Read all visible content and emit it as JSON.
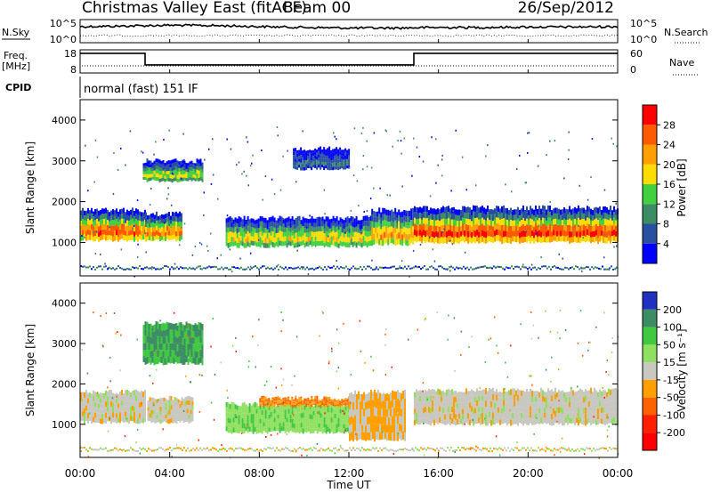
{
  "header": {
    "title": "Christmas Valley East (fitACF)",
    "beam": "Beam 00",
    "date": "26/Sep/2012"
  },
  "panels": {
    "nsky": {
      "label": "N.Sky",
      "ytick_top": "10^5",
      "ytick_bottom": "10^0",
      "right_tick_top": "10^5",
      "right_tick_bottom": "10^0",
      "right_label": "N.Search"
    },
    "freq": {
      "label": "Freq.",
      "unit": "[MHz]",
      "ytick_top": "18",
      "ytick_bottom": "8",
      "right_tick_top": "60",
      "right_tick_bottom": "0",
      "right_label": "Nave"
    },
    "cpid": {
      "label": "CPID",
      "text": "normal (fast) 151 IF"
    }
  },
  "power_panel": {
    "ylabel": "Slant Range [km]",
    "colorbar_label": "Power [dB]",
    "colorbar_ticks": [
      "28",
      "24",
      "20",
      "16",
      "12",
      "8",
      "4"
    ],
    "colorbar_colors": [
      "#ff0000",
      "#ff5a00",
      "#ffa000",
      "#ffdc00",
      "#40d040",
      "#3c8c64",
      "#2850a0",
      "#0000ff"
    ]
  },
  "velocity_panel": {
    "ylabel": "Slant Range [km]",
    "colorbar_label": "Velocity [m s⁻¹]",
    "colorbar_ticks": [
      "200",
      "100",
      "50",
      "15",
      "-15",
      "-50",
      "-100",
      "-200"
    ],
    "colorbar_colors": [
      "#2030c0",
      "#3c8c64",
      "#40c840",
      "#90e060",
      "#c8c8c0",
      "#ffa000",
      "#ff6000",
      "#ff2000",
      "#ff0000"
    ]
  },
  "xaxis": {
    "label": "Time UT",
    "ticks": [
      "00:00",
      "04:00",
      "08:00",
      "12:00",
      "16:00",
      "20:00",
      "00:00"
    ]
  },
  "chart_data": [
    {
      "type": "line",
      "title": "N.Sky / N.Search",
      "x_unit": "hours UT",
      "y_scale": "log",
      "ylim": [
        1,
        100000
      ],
      "series": [
        {
          "name": "N.Sky",
          "x": [
            0,
            2,
            4,
            6,
            8,
            10,
            12,
            14,
            16,
            18,
            20,
            22,
            24
          ],
          "y": [
            3000,
            4000,
            6000,
            5000,
            3000,
            2000,
            1500,
            1500,
            2000,
            2000,
            2500,
            2500,
            3000
          ]
        }
      ]
    },
    {
      "type": "line",
      "title": "Freq. [MHz] / Nave",
      "x_unit": "hours UT",
      "ylim": [
        8,
        18
      ],
      "series": [
        {
          "name": "Freq.",
          "x": [
            0,
            2.9,
            2.9,
            14.9,
            14.9,
            24
          ],
          "y": [
            16.5,
            16.5,
            11.5,
            11.5,
            16.5,
            16.5
          ]
        }
      ]
    },
    {
      "type": "heatmap",
      "title": "Power [dB]",
      "x_unit": "hours UT",
      "xlim": [
        0,
        24
      ],
      "ylim": [
        180,
        4500
      ],
      "yticks": [
        1000,
        2000,
        3000,
        4000
      ],
      "colorbar_range": [
        0,
        30
      ],
      "bands": [
        {
          "t0": 0.0,
          "t1": 2.9,
          "r0": 1050,
          "r1": 1800,
          "peak_db": 28
        },
        {
          "t0": 2.9,
          "t1": 4.5,
          "r0": 1050,
          "r1": 1700,
          "peak_db": 26
        },
        {
          "t0": 6.5,
          "t1": 13.0,
          "r0": 900,
          "r1": 1600,
          "peak_db": 20
        },
        {
          "t0": 13.0,
          "t1": 14.9,
          "r0": 950,
          "r1": 1800,
          "peak_db": 24
        },
        {
          "t0": 14.9,
          "t1": 24.0,
          "r0": 1000,
          "r1": 1850,
          "peak_db": 30
        },
        {
          "t0": 2.8,
          "t1": 5.5,
          "r0": 2500,
          "r1": 3000,
          "peak_db": 18
        },
        {
          "t0": 9.5,
          "t1": 12.0,
          "r0": 2800,
          "r1": 3300,
          "peak_db": 8
        }
      ]
    },
    {
      "type": "heatmap",
      "title": "Velocity [m s⁻¹]",
      "x_unit": "hours UT",
      "xlim": [
        0,
        24
      ],
      "ylim": [
        180,
        4500
      ],
      "yticks": [
        1000,
        2000,
        3000,
        4000
      ],
      "colorbar_range": [
        -250,
        250
      ],
      "bands": [
        {
          "t0": 0.0,
          "t1": 2.9,
          "r0": 1050,
          "r1": 1800,
          "velocity": 0
        },
        {
          "t0": 3.0,
          "t1": 5.0,
          "r0": 1050,
          "r1": 1650,
          "velocity": 0
        },
        {
          "t0": 6.5,
          "t1": 12.0,
          "r0": 800,
          "r1": 1500,
          "velocity": 40
        },
        {
          "t0": 8.0,
          "t1": 12.0,
          "r0": 1450,
          "r1": 1650,
          "velocity": -50
        },
        {
          "t0": 12.0,
          "t1": 14.5,
          "r0": 600,
          "r1": 1800,
          "velocity": -20
        },
        {
          "t0": 14.9,
          "t1": 24.0,
          "r0": 1000,
          "r1": 1850,
          "velocity": 0
        },
        {
          "t0": 2.8,
          "t1": 5.5,
          "r0": 2500,
          "r1": 3500,
          "velocity": 100
        }
      ]
    }
  ]
}
